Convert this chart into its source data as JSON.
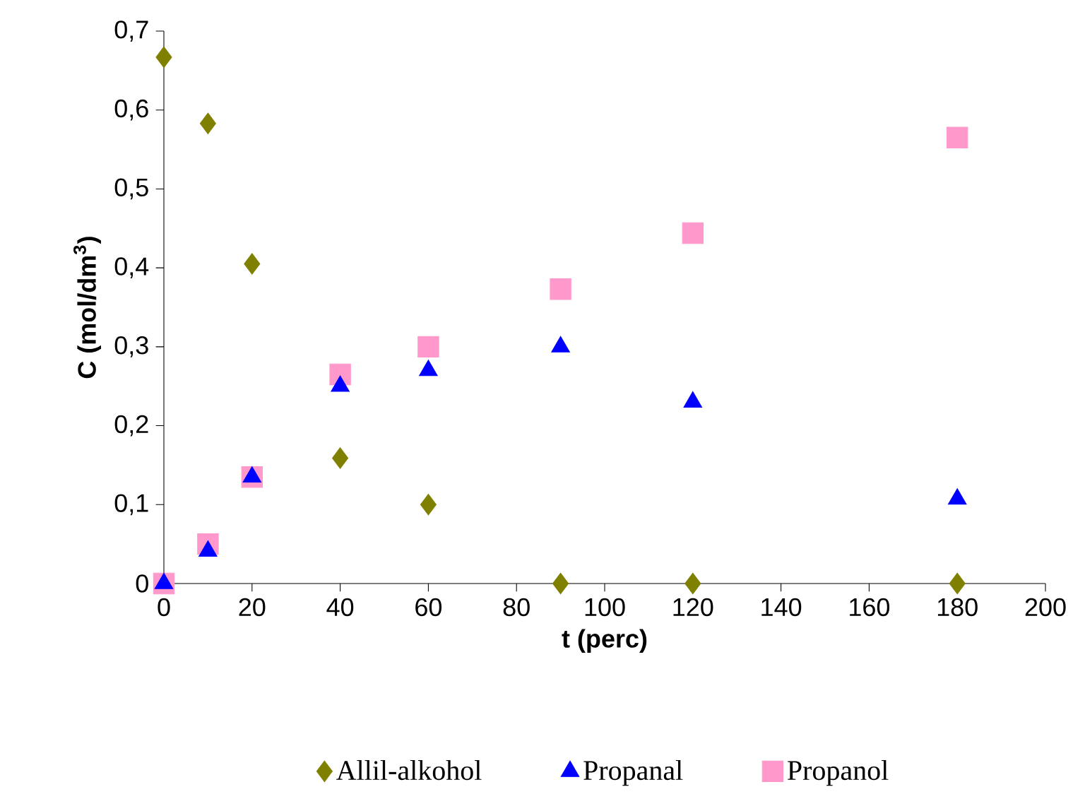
{
  "chart_data": {
    "type": "scatter",
    "xlabel": "t (perc)",
    "ylabel": "C (mol/dm$^{3}$)",
    "x": [
      0,
      10,
      20,
      40,
      60,
      90,
      120,
      180
    ],
    "series": [
      {
        "name": "Allil-alkohol",
        "color": "#808000",
        "marker": "diamond",
        "values": [
          0.667,
          0.583,
          0.405,
          0.159,
          0.1,
          0,
          0,
          0
        ]
      },
      {
        "name": "Propanal",
        "color": "#0000ff",
        "marker": "triangle",
        "values": [
          0,
          0.041,
          0.135,
          0.25,
          0.27,
          0.3,
          0.23,
          0.107
        ]
      },
      {
        "name": "Propanol",
        "color": "#ff99cc",
        "marker": "square",
        "values": [
          0,
          0.05,
          0.135,
          0.265,
          0.3,
          0.373,
          0.444,
          0.565
        ]
      }
    ],
    "xlim": [
      0,
      200
    ],
    "ylim": [
      0,
      0.7
    ],
    "xticks": [
      0,
      20,
      40,
      60,
      80,
      100,
      120,
      140,
      160,
      180,
      200
    ],
    "yticks": [
      0,
      {
        "value": 0.1,
        "label": "0,1"
      },
      {
        "value": 0.2,
        "label": "0,2"
      },
      {
        "value": 0.3,
        "label": "0,3"
      },
      {
        "value": 0.4,
        "label": "0,4"
      },
      {
        "value": 0.5,
        "label": "0,5"
      },
      {
        "value": 0.6,
        "label": "0,6"
      },
      {
        "value": 0.7,
        "label": "0,7"
      }
    ],
    "grid": false,
    "legend": "bottom"
  }
}
